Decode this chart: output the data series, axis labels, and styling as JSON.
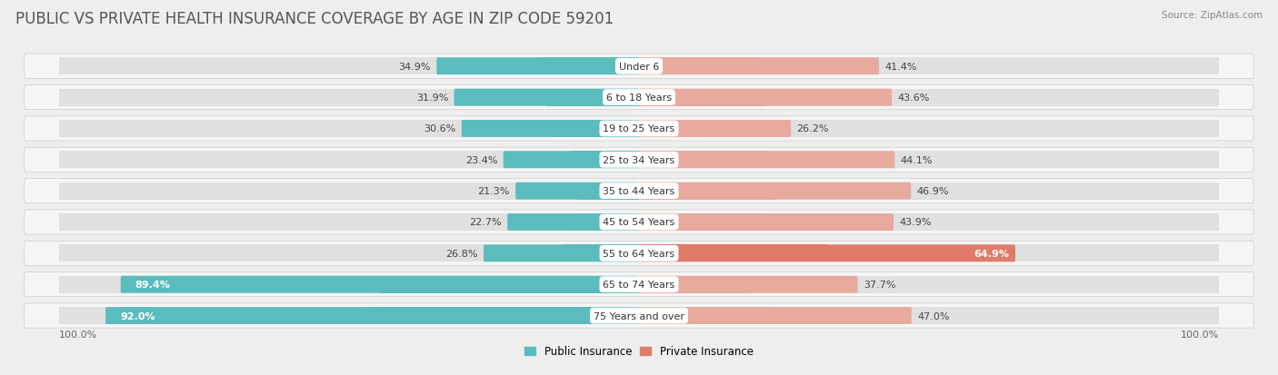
{
  "title": "Public vs Private Health Insurance Coverage by Age in Zip Code 59201",
  "title_display": "PUBLIC VS PRIVATE HEALTH INSURANCE COVERAGE BY AGE IN ZIP CODE 59201",
  "source": "Source: ZipAtlas.com",
  "categories": [
    "Under 6",
    "6 to 18 Years",
    "19 to 25 Years",
    "25 to 34 Years",
    "35 to 44 Years",
    "45 to 54 Years",
    "55 to 64 Years",
    "65 to 74 Years",
    "75 Years and over"
  ],
  "public_values": [
    34.9,
    31.9,
    30.6,
    23.4,
    21.3,
    22.7,
    26.8,
    89.4,
    92.0
  ],
  "private_values": [
    41.4,
    43.6,
    26.2,
    44.1,
    46.9,
    43.9,
    64.9,
    37.7,
    47.0
  ],
  "public_color": "#5bbcbd",
  "private_color_strong": "#e07b6a",
  "private_color_weak": "#e8a99e",
  "private_threshold": 50.0,
  "public_label": "Public Insurance",
  "private_label": "Private Insurance",
  "bg_color": "#eeeeee",
  "row_bg_color": "#f5f5f5",
  "bar_bg_color": "#e0e0e0",
  "axis_label_left": "100.0%",
  "axis_label_right": "100.0%",
  "title_fontsize": 12,
  "value_fontsize": 8,
  "category_fontsize": 8,
  "legend_fontsize": 8.5
}
